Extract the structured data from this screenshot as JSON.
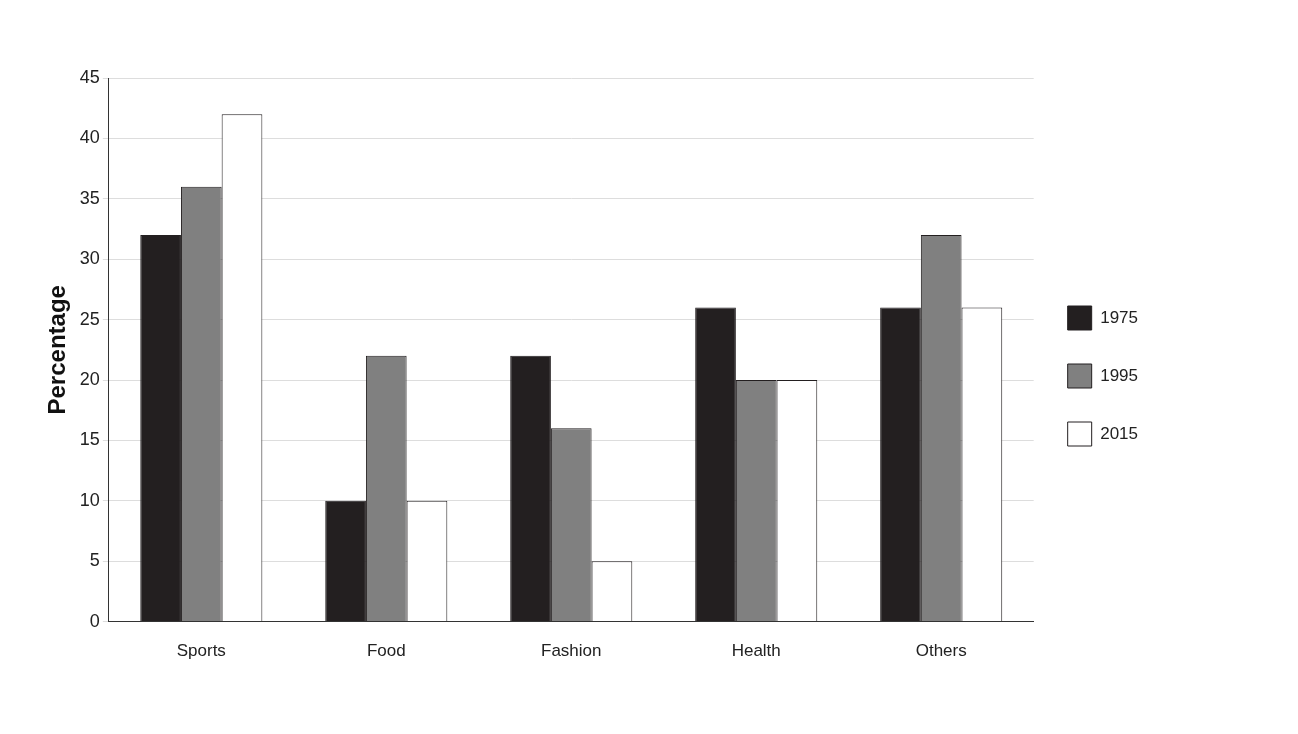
{
  "chart_data": {
    "type": "bar",
    "y_label": "Percentage",
    "categories": [
      "Sports",
      "Food",
      "Fashion",
      "Health",
      "Others"
    ],
    "series": [
      {
        "name": "1975",
        "color": "#231f20",
        "values": [
          32,
          10,
          22,
          26,
          26
        ]
      },
      {
        "name": "1995",
        "color": "#808080",
        "values": [
          36,
          22,
          16,
          20,
          32
        ]
      },
      {
        "name": "2015",
        "color": "#ffffff",
        "values": [
          42,
          10,
          5,
          20,
          26
        ]
      }
    ],
    "ylim": [
      0,
      45
    ],
    "yticks": [
      0,
      5,
      10,
      15,
      20,
      25,
      30,
      35,
      40,
      45
    ],
    "grid": true,
    "legend": "right"
  }
}
